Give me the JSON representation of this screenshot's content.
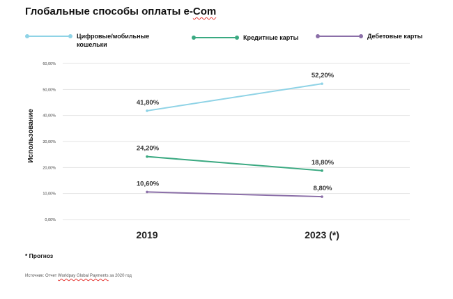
{
  "title": {
    "main": "Глобальные способы оплаты e-",
    "marked": "Com"
  },
  "legend": [
    {
      "label": "Цифровые/мобильные кошельки",
      "color": "#8fd3e6"
    },
    {
      "label": "Кредитные карты",
      "color": "#3aa981"
    },
    {
      "label": "Дебетовые карты",
      "color": "#8b6fa8"
    }
  ],
  "footnote": "* Прогноз",
  "source": {
    "before": "Источник: Отчет ",
    "marked": "Worldpay Global Payments",
    "after": " за 2020 год"
  },
  "chart_data": {
    "type": "line",
    "ylabel": "Использование",
    "categories": [
      "2019",
      "2023 (*)"
    ],
    "ylim": [
      0,
      60
    ],
    "yticks": [
      "0,00%",
      "10,00%",
      "20,00%",
      "30,00%",
      "40,00%",
      "50,00%",
      "60,00%"
    ],
    "grid": true,
    "legend_position": "top",
    "series": [
      {
        "name": "Цифровые/мобильные кошельки",
        "values": [
          41.8,
          52.2
        ],
        "labels": [
          "41,80%",
          "52,20%"
        ],
        "color": "#8fd3e6"
      },
      {
        "name": "Кредитные карты",
        "values": [
          24.2,
          18.8
        ],
        "labels": [
          "24,20%",
          "18,80%"
        ],
        "color": "#3aa981"
      },
      {
        "name": "Дебетовые карты",
        "values": [
          10.6,
          8.8
        ],
        "labels": [
          "10,60%",
          "8,80%"
        ],
        "color": "#8b6fa8"
      }
    ]
  }
}
